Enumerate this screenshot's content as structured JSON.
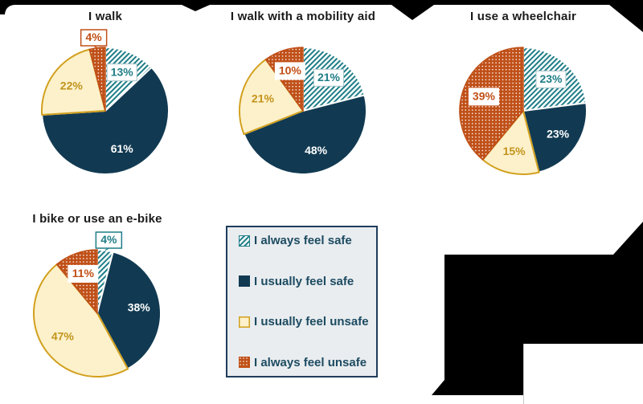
{
  "page": {
    "background": "#ffffff",
    "decoration_color": "#000000"
  },
  "categories": [
    "I always feel safe",
    "I usually feel safe",
    "I usually feel unsafe",
    "I always feel unsafe"
  ],
  "series_styles": [
    {
      "name": "I always feel safe",
      "fill": "hatch",
      "color": "#1f7d87",
      "stroke": "#ffffff",
      "label_color": "#1f7d87",
      "boxed": true,
      "box_border": "#a9c6ca"
    },
    {
      "name": "I usually feel safe",
      "fill": "solid",
      "color": "#113a52",
      "stroke": "#ffffff",
      "label_color": "#ffffff",
      "boxed": false,
      "box_border": "none"
    },
    {
      "name": "I usually feel unsafe",
      "fill": "solid",
      "color": "#fcf1cb",
      "stroke": "#d2a01e",
      "label_color": "#c3941c",
      "boxed": false,
      "box_border": "none"
    },
    {
      "name": "I always feel unsafe",
      "fill": "dots",
      "color": "#c05018",
      "stroke": "#c05018",
      "label_color": "#c14f16",
      "boxed": true,
      "box_border": "#ffffff"
    }
  ],
  "chart_data": [
    {
      "type": "pie",
      "title": "I walk",
      "categories": [
        "I always feel safe",
        "I usually feel safe",
        "I usually feel unsafe",
        "I always feel unsafe"
      ],
      "values": [
        13,
        61,
        22,
        4
      ],
      "labels": [
        "13%",
        "61%",
        "22%",
        "4%"
      ]
    },
    {
      "type": "pie",
      "title": "I walk with a mobility aid",
      "categories": [
        "I always feel safe",
        "I usually feel safe",
        "I usually feel unsafe",
        "I always feel unsafe"
      ],
      "values": [
        21,
        48,
        21,
        10
      ],
      "labels": [
        "21%",
        "48%",
        "21%",
        "10%"
      ]
    },
    {
      "type": "pie",
      "title": "I use a wheelchair",
      "categories": [
        "I always feel safe",
        "I usually feel safe",
        "I usually feel unsafe",
        "I always feel unsafe"
      ],
      "values": [
        23,
        23,
        15,
        39
      ],
      "labels": [
        "23%",
        "23%",
        "15%",
        "39%"
      ]
    },
    {
      "type": "pie",
      "title": "I bike or use an e-bike",
      "categories": [
        "I always feel safe",
        "I usually feel safe",
        "I usually feel unsafe",
        "I always feel unsafe"
      ],
      "values": [
        4,
        38,
        47,
        11
      ],
      "labels": [
        "4%",
        "38%",
        "47%",
        "11%"
      ]
    }
  ],
  "legend": {
    "items": [
      {
        "label": "I always feel safe"
      },
      {
        "label": "I usually feel safe"
      },
      {
        "label": "I usually feel unsafe"
      },
      {
        "label": "I always feel unsafe"
      }
    ],
    "background": "#e9edf0",
    "border_color": "#1f3d5c",
    "text_color": "#1d4b61"
  }
}
